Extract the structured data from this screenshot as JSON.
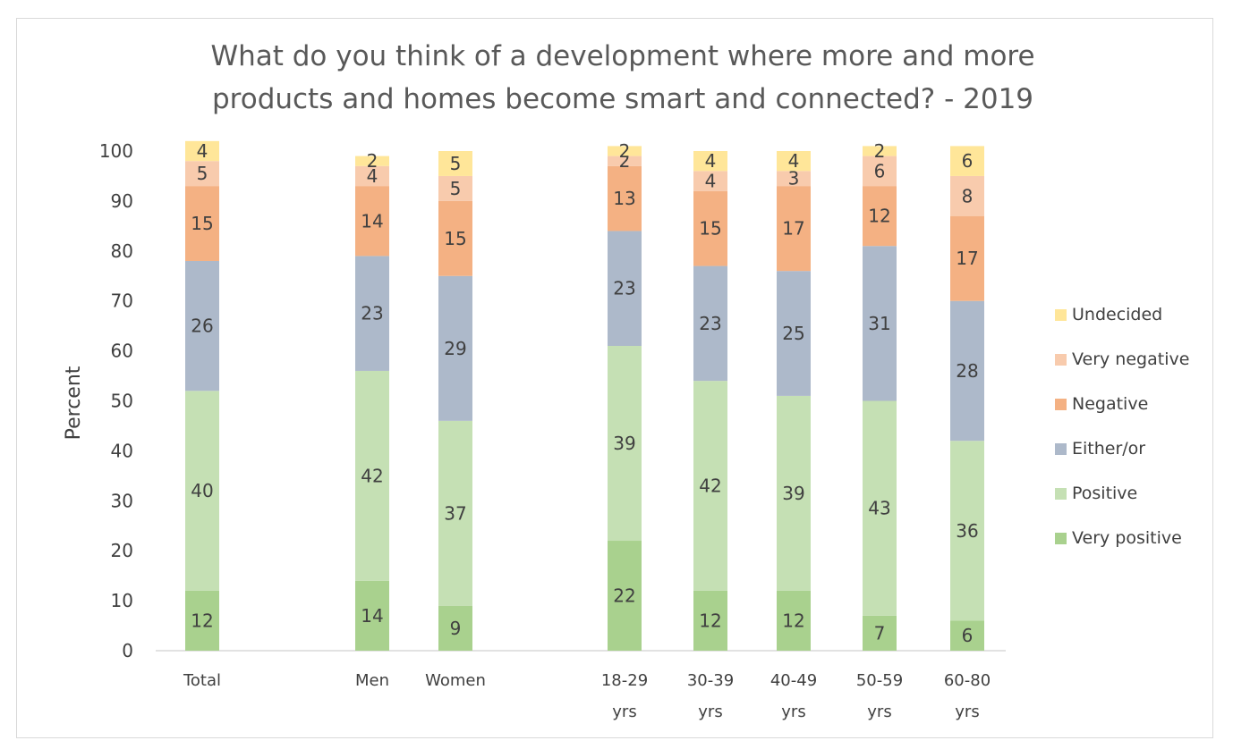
{
  "chart_data": {
    "type": "bar",
    "stacked": true,
    "title_lines": [
      "What do you think of a development where more and more",
      "products and homes become smart and connected? - 2019"
    ],
    "xlabel": "",
    "ylabel": "Percent",
    "ylim": [
      0,
      100
    ],
    "yticks": [
      0,
      10,
      20,
      30,
      40,
      50,
      60,
      70,
      80,
      90,
      100
    ],
    "grid": false,
    "legend_position": "right",
    "categories": [
      [
        "Total"
      ],
      [
        "Men"
      ],
      [
        "Women"
      ],
      [
        "18-29",
        "yrs"
      ],
      [
        "30-39",
        "yrs"
      ],
      [
        "40-49",
        "yrs"
      ],
      [
        "50-59",
        "yrs"
      ],
      [
        "60-80",
        "yrs"
      ]
    ],
    "series": [
      {
        "name": "Very positive",
        "color": "#a9d18e",
        "values": [
          12,
          14,
          9,
          22,
          12,
          12,
          7,
          6
        ]
      },
      {
        "name": "Positive",
        "color": "#c5e0b4",
        "values": [
          40,
          42,
          37,
          39,
          42,
          39,
          43,
          36
        ]
      },
      {
        "name": "Either/or",
        "color": "#adb9ca",
        "values": [
          26,
          23,
          29,
          23,
          23,
          25,
          31,
          28
        ]
      },
      {
        "name": "Negative",
        "color": "#f4b183",
        "values": [
          15,
          14,
          15,
          13,
          15,
          17,
          12,
          17
        ]
      },
      {
        "name": "Very negative",
        "color": "#f8cbad",
        "values": [
          5,
          4,
          5,
          2,
          4,
          3,
          6,
          8
        ]
      },
      {
        "name": "Undecided",
        "color": "#ffe699",
        "values": [
          4,
          2,
          5,
          2,
          4,
          4,
          2,
          6
        ]
      }
    ]
  }
}
